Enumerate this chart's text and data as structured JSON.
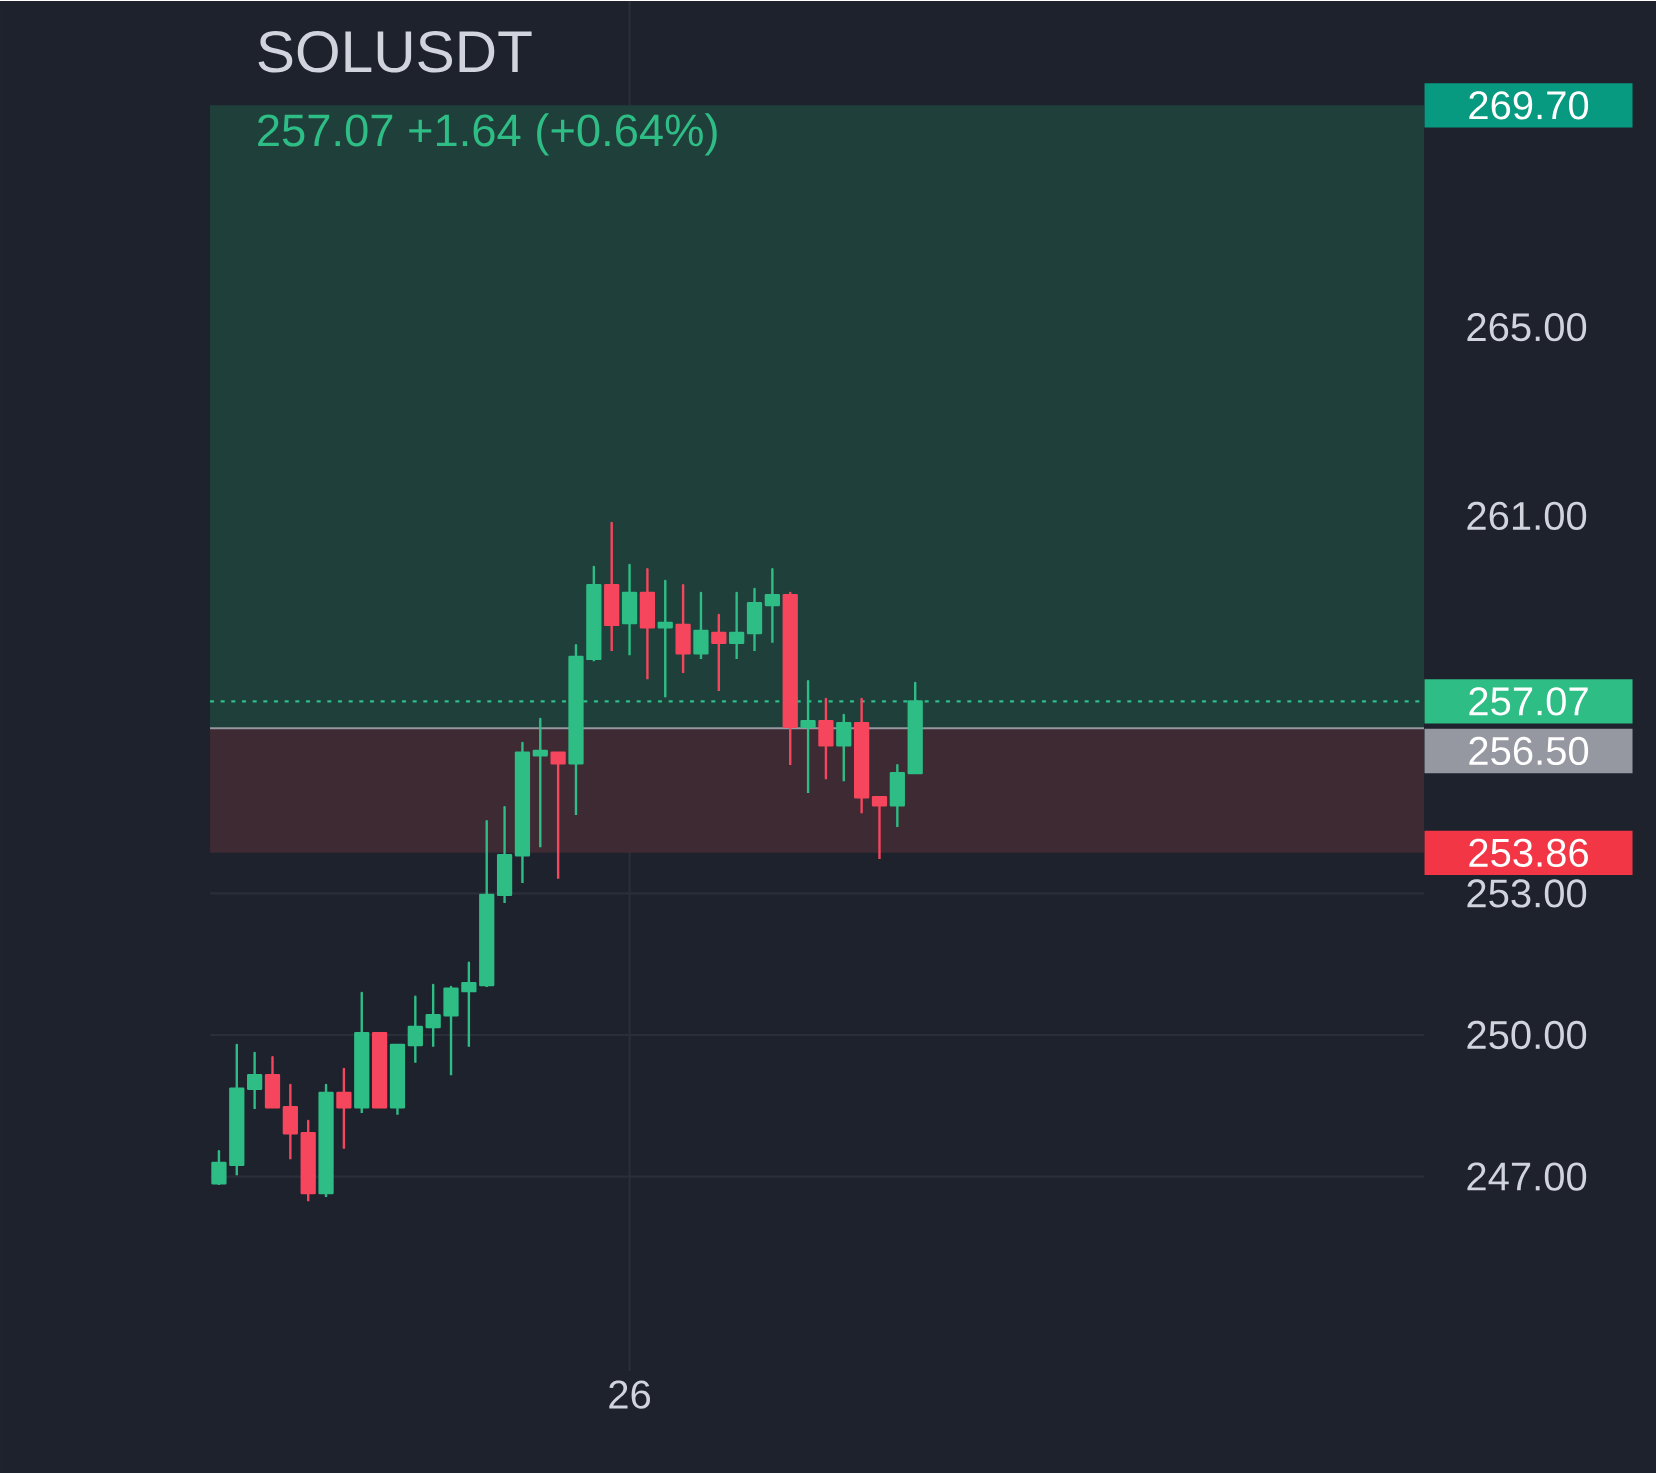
{
  "chart_data": {
    "type": "candlestick",
    "title": "SOLUSDT",
    "subtitle": "257.07 +1.64 (+0.64%)",
    "categories": [
      null,
      null,
      null,
      null,
      null,
      null,
      null,
      null,
      null,
      null,
      null,
      null,
      null,
      null,
      null,
      null,
      null,
      null,
      null,
      null,
      null,
      null,
      null,
      "26",
      null,
      null,
      null,
      null,
      null,
      null,
      null,
      null,
      null,
      null,
      null,
      null,
      null,
      null,
      null,
      null,
      null,
      null,
      null,
      null,
      null,
      null,
      null,
      null,
      null,
      null,
      null,
      null,
      null,
      null,
      null,
      null,
      null,
      null,
      null,
      null,
      null,
      null,
      null,
      null,
      null,
      null,
      null,
      null
    ],
    "ohlc": [
      [
        246.86,
        247.54,
        246.82,
        247.29
      ],
      [
        247.25,
        249.79,
        247.03,
        248.86
      ],
      [
        248.86,
        249.62,
        248.43,
        249.15
      ],
      [
        249.15,
        249.53,
        248.47,
        248.47
      ],
      [
        248.47,
        248.94,
        247.37,
        247.92
      ],
      [
        247.92,
        248.18,
        246.48,
        246.65
      ],
      [
        246.65,
        248.94,
        246.57,
        248.77
      ],
      [
        248.77,
        249.28,
        247.59,
        248.47
      ],
      [
        248.47,
        250.89,
        248.35,
        250.04
      ],
      [
        250.04,
        250.04,
        248.47,
        248.47
      ],
      [
        248.47,
        249.79,
        248.31,
        249.79
      ],
      [
        249.79,
        250.81,
        249.41,
        250.17
      ],
      [
        250.17,
        251.06,
        249.75,
        250.42
      ],
      [
        250.42,
        251.02,
        249.15,
        250.98
      ],
      [
        250.93,
        251.53,
        249.75,
        251.1
      ],
      [
        251.06,
        254.53,
        251.02,
        252.97
      ],
      [
        252.97,
        254.83,
        252.8,
        253.81
      ],
      [
        253.81,
        256.19,
        253.22,
        255.98
      ],
      [
        255.93,
        256.7,
        253.98,
        256.02
      ],
      [
        255.98,
        255.98,
        253.31,
        255.76
      ],
      [
        255.76,
        258.26,
        254.66,
        258.01
      ],
      [
        257.97,
        259.92,
        257.92,
        259.53
      ],
      [
        259.53,
        260.85,
        258.14,
        258.69
      ],
      [
        258.73,
        259.96,
        258.05,
        259.37
      ],
      [
        259.37,
        259.87,
        257.54,
        258.64
      ],
      [
        258.64,
        259.62,
        257.16,
        258.73
      ],
      [
        258.69,
        259.53,
        257.67,
        258.09
      ],
      [
        258.09,
        259.37,
        257.97,
        258.56
      ],
      [
        258.52,
        258.9,
        257.29,
        258.31
      ],
      [
        258.31,
        259.37,
        257.97,
        258.52
      ],
      [
        258.52,
        259.45,
        258.14,
        259.15
      ],
      [
        259.11,
        259.87,
        258.31,
        259.32
      ],
      [
        259.32,
        259.37,
        255.72,
        256.53
      ],
      [
        256.53,
        257.5,
        255.13,
        256.65
      ],
      [
        256.65,
        257.12,
        255.42,
        256.14
      ],
      [
        256.14,
        256.78,
        255.38,
        256.61
      ],
      [
        256.61,
        257.12,
        254.7,
        255.04
      ],
      [
        255.04,
        255.04,
        253.73,
        254.87
      ],
      [
        254.87,
        255.72,
        254.41,
        255.55
      ],
      [
        255.55,
        257.46,
        255.55,
        257.07
      ],
      null,
      null,
      null,
      null,
      null,
      null,
      null,
      null,
      null,
      null,
      null,
      null,
      null,
      null,
      null,
      null,
      null,
      null,
      null,
      null,
      null,
      null,
      null,
      null,
      null,
      null,
      null,
      null
    ],
    "colors": [
      "#2ebd85",
      "#2ebd85",
      "#2ebd85",
      "#f6465d",
      "#f6465d",
      "#f6465d",
      "#2ebd85",
      "#f6465d",
      "#2ebd85",
      "#f6465d",
      "#2ebd85",
      "#2ebd85",
      "#2ebd85",
      "#2ebd85",
      "#2ebd85",
      "#2ebd85",
      "#2ebd85",
      "#2ebd85",
      "#2ebd85",
      "#f6465d",
      "#2ebd85",
      "#2ebd85",
      "#f6465d",
      "#2ebd85",
      "#f6465d",
      "#2ebd85",
      "#f6465d",
      "#2ebd85",
      "#f6465d",
      "#2ebd85",
      "#2ebd85",
      "#2ebd85",
      "#f6465d",
      "#2ebd85",
      "#f6465d",
      "#2ebd85",
      "#f6465d",
      "#f6465d",
      "#2ebd85",
      "#2ebd85",
      null,
      null,
      null,
      null,
      null,
      null,
      null,
      null,
      null,
      null,
      null,
      null,
      null,
      null,
      null,
      null,
      null,
      null,
      null,
      null,
      null,
      null,
      null,
      null,
      null,
      null,
      null,
      null
    ],
    "ylim": [
      242.88,
      271.91
    ],
    "yticks": [
      {
        "value": 247,
        "label": "247.00"
      },
      {
        "value": 250,
        "label": "250.00"
      },
      {
        "value": 253,
        "label": "253.00"
      },
      {
        "value": 261,
        "label": "261.00"
      },
      {
        "value": 265,
        "label": "265.00"
      }
    ],
    "grid": true,
    "bands": [
      {
        "axis": "y",
        "from": 256.5,
        "to": 269.7,
        "label": "269.70",
        "color": "#1f3f3b"
      },
      {
        "axis": "y",
        "from": 253.86,
        "to": 256.5,
        "label": "253.86",
        "color": "#3d2a33"
      }
    ],
    "ref_lines": [
      {
        "axis": "y",
        "value": 257.07,
        "label": "257.07",
        "color": "#2ebd85",
        "line_style": "dotted"
      },
      {
        "axis": "y",
        "value": 256.5,
        "label": "256.50",
        "color": "#9598a1",
        "line_style": "solid"
      }
    ]
  }
}
